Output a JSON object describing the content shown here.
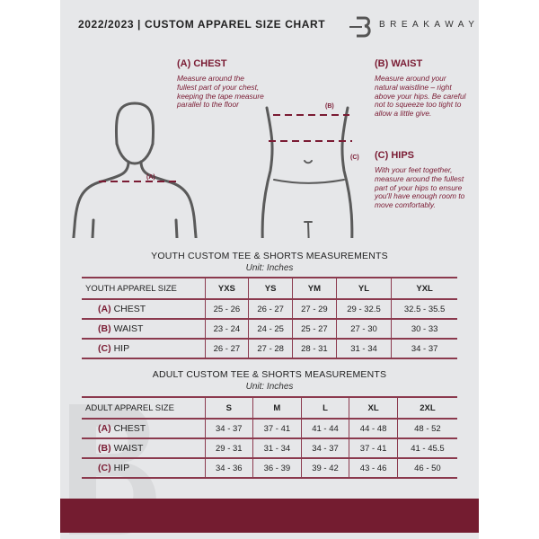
{
  "header": {
    "title": "2022/2023  |  CUSTOM APPAREL SIZE CHART",
    "brand": "BREAKAWAY"
  },
  "guides": {
    "chest": {
      "title": "(A) CHEST",
      "text": "Measure around the fullest part of your chest, keeping the tape measure parallel to the floor",
      "marker": "(A)"
    },
    "waist": {
      "title": "(B) WAIST",
      "text": "Measure around your natural waistline – right above your hips. Be careful not to squeeze too tight to allow a little give.",
      "marker": "(B)"
    },
    "hips": {
      "title": "(C) HIPS",
      "text": "With your feet together, measure around the fullest part of your hips to ensure you'll have enough room to move comfortably.",
      "marker": "(C)"
    }
  },
  "youth": {
    "title": "YOUTH CUSTOM TEE & SHORTS MEASUREMENTS",
    "unit": "Unit: Inches",
    "header": [
      "YOUTH APPAREL SIZE",
      "YXS",
      "YS",
      "YM",
      "YL",
      "YXL"
    ],
    "rows": [
      {
        "code": "(A)",
        "label": "CHEST",
        "values": [
          "25 - 26",
          "26 - 27",
          "27 - 29",
          "29 - 32.5",
          "32.5 - 35.5"
        ]
      },
      {
        "code": "(B)",
        "label": "WAIST",
        "values": [
          "23 - 24",
          "24 - 25",
          "25 - 27",
          "27 - 30",
          "30 - 33"
        ]
      },
      {
        "code": "(C)",
        "label": "HIP",
        "values": [
          "26 - 27",
          "27 - 28",
          "28 - 31",
          "31 - 34",
          "34 - 37"
        ]
      }
    ]
  },
  "adult": {
    "title": "ADULT CUSTOM TEE & SHORTS MEASUREMENTS",
    "unit": "Unit: Inches",
    "header": [
      "ADULT APPAREL SIZE",
      "S",
      "M",
      "L",
      "XL",
      "2XL"
    ],
    "rows": [
      {
        "code": "(A)",
        "label": "CHEST",
        "values": [
          "34 - 37",
          "37 - 41",
          "41 - 44",
          "44 - 48",
          "48 - 52"
        ]
      },
      {
        "code": "(B)",
        "label": "WAIST",
        "values": [
          "29 - 31",
          "31 - 34",
          "34 - 37",
          "37 - 41",
          "41 - 45.5"
        ]
      },
      {
        "code": "(C)",
        "label": "HIP",
        "values": [
          "34 - 36",
          "36 - 39",
          "39 - 42",
          "43 - 46",
          "46 - 50"
        ]
      }
    ]
  },
  "colors": {
    "accent": "#741c30",
    "background": "#e6e7e9"
  }
}
